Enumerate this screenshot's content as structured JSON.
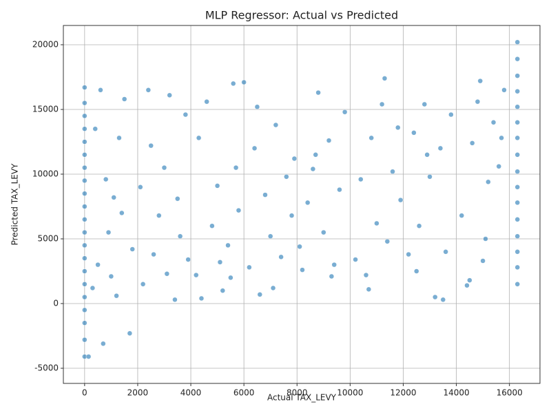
{
  "chart_data": {
    "type": "scatter",
    "title": "MLP Regressor: Actual vs Predicted",
    "x_label": "Actual TAX_LEVY",
    "y_label": "Predicted TAX_LEVY",
    "color": "#1f77b4",
    "grid": true,
    "xlim": [
      -800,
      17150
    ],
    "ylim": [
      -6170,
      21490
    ],
    "xticks": [
      0,
      2000,
      4000,
      6000,
      8000,
      10000,
      12000,
      14000,
      16000
    ],
    "yticks": [
      -5000,
      0,
      5000,
      10000,
      15000,
      20000
    ],
    "x": [
      0,
      0,
      0,
      0,
      0,
      0,
      0,
      0,
      0,
      0,
      0,
      0,
      0,
      0,
      0,
      0,
      0,
      0,
      0,
      0,
      0,
      150,
      16300,
      16300,
      16300,
      16300,
      16300,
      16300,
      16300,
      16300,
      16300,
      16300,
      16300,
      16300,
      16300,
      16300,
      16300,
      16300,
      300,
      500,
      700,
      900,
      1100,
      1300,
      1500,
      1700,
      600,
      800,
      1200,
      1800,
      400,
      1000,
      1400,
      2200,
      2400,
      2600,
      2800,
      3000,
      3200,
      3400,
      3600,
      3800,
      2100,
      2500,
      3100,
      3500,
      3900,
      4200,
      4400,
      4600,
      4800,
      5000,
      5200,
      5400,
      5600,
      5800,
      4300,
      5100,
      5500,
      6000,
      5700,
      6200,
      6400,
      6600,
      6800,
      7000,
      7200,
      7400,
      7600,
      7800,
      6500,
      7100,
      7900,
      8200,
      8400,
      8600,
      8800,
      9000,
      9200,
      9400,
      9600,
      9800,
      8100,
      9300,
      8700,
      10200,
      10400,
      10600,
      10800,
      11000,
      11200,
      11400,
      11600,
      11800,
      10700,
      11300,
      11900,
      12200,
      12400,
      12600,
      12800,
      13000,
      13200,
      13400,
      13600,
      13800,
      12500,
      13500,
      12900,
      14200,
      14400,
      14600,
      14800,
      15000,
      15200,
      15400,
      15600,
      15800,
      14500,
      15100,
      14900,
      15700
    ],
    "y": [
      -4100,
      -2800,
      -1500,
      -500,
      500,
      1500,
      2500,
      3500,
      4500,
      5500,
      6500,
      7500,
      8500,
      9500,
      10500,
      11500,
      12500,
      13500,
      14500,
      15500,
      16700,
      -4100,
      1500,
      2800,
      4000,
      5200,
      6500,
      7800,
      9000,
      10200,
      11500,
      12800,
      14000,
      15200,
      16400,
      17600,
      18900,
      20200,
      1200,
      3000,
      -3100,
      5500,
      8200,
      12800,
      15800,
      -2300,
      16500,
      9600,
      600,
      4200,
      13500,
      2100,
      7000,
      1500,
      16500,
      3800,
      6800,
      10500,
      16100,
      300,
      5200,
      14600,
      9000,
      12200,
      2300,
      8100,
      3400,
      2200,
      400,
      15600,
      6000,
      9100,
      1000,
      4500,
      17000,
      7200,
      12800,
      3200,
      2000,
      17100,
      10500,
      2800,
      12000,
      700,
      8400,
      5200,
      13800,
      3600,
      9800,
      6800,
      15200,
      1200,
      11200,
      2600,
      7800,
      10400,
      16300,
      5500,
      12600,
      3000,
      8800,
      14800,
      4400,
      2100,
      11500,
      3400,
      9600,
      2200,
      12800,
      6200,
      15400,
      4800,
      10200,
      13600,
      1100,
      17400,
      8000,
      3800,
      13200,
      6000,
      15400,
      9800,
      500,
      12000,
      4000,
      14600,
      2500,
      300,
      11500,
      6800,
      1400,
      12400,
      15600,
      3300,
      9400,
      14000,
      10600,
      16500,
      1800,
      5000,
      17200,
      12800
    ]
  }
}
